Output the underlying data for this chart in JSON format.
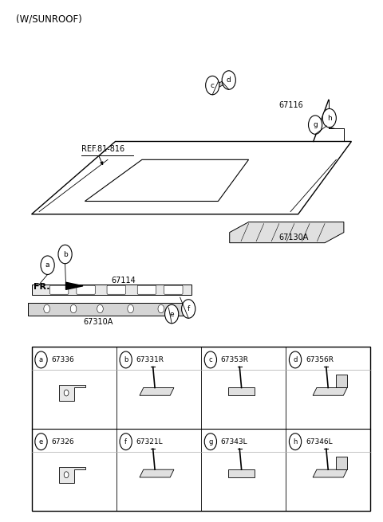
{
  "title": "(W/SUNROOF)",
  "background_color": "#ffffff",
  "fig_width": 4.8,
  "fig_height": 6.55,
  "dpi": 100,
  "table": {
    "rows": [
      [
        {
          "label": "a",
          "code": "67336"
        },
        {
          "label": "b",
          "code": "67331R"
        },
        {
          "label": "c",
          "code": "67353R"
        },
        {
          "label": "d",
          "code": "67356R"
        }
      ],
      [
        {
          "label": "e",
          "code": "67326"
        },
        {
          "label": "f",
          "code": "67321L"
        },
        {
          "label": "g",
          "code": "67343L"
        },
        {
          "label": "h",
          "code": "67346L"
        }
      ]
    ]
  }
}
